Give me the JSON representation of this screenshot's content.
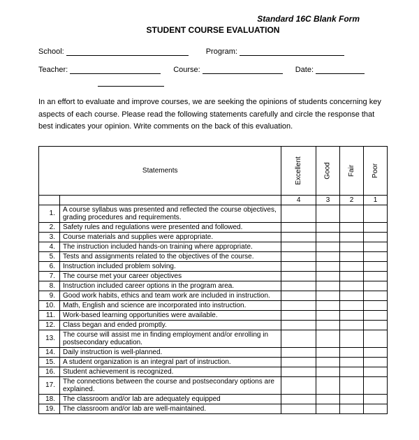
{
  "form_header": "Standard 16C Blank Form",
  "title": "STUDENT COURSE EVALUATION",
  "fields": {
    "school": "School:",
    "program": "Program:",
    "teacher": "Teacher:",
    "course": "Course:",
    "date": "Date:"
  },
  "intro": "In an effort to evaluate and improve courses, we are seeking the opinions of students concerning key aspects of each course.  Please read the following statements carefully and circle the response that best indicates your opinion.  Write comments on the back of this evaluation.",
  "table": {
    "statements_header": "Statements",
    "ratings": [
      {
        "label": "Excellent",
        "value": "4"
      },
      {
        "label": "Good",
        "value": "3"
      },
      {
        "label": "Fair",
        "value": "2"
      },
      {
        "label": "Poor",
        "value": "1"
      }
    ],
    "rows": [
      {
        "num": "1.",
        "text": "A course syllabus was presented and reflected the course objectives, grading procedures and requirements."
      },
      {
        "num": "2.",
        "text": "Safety rules and regulations were presented and followed."
      },
      {
        "num": "3.",
        "text": "Course materials and supplies were appropriate."
      },
      {
        "num": "4.",
        "text": "The instruction included hands-on training where appropriate."
      },
      {
        "num": "5.",
        "text": "Tests and assignments related to the objectives of the course."
      },
      {
        "num": "6.",
        "text": "Instruction included problem solving."
      },
      {
        "num": "7.",
        "text": "The course met your career objectives"
      },
      {
        "num": "8.",
        "text": "Instruction included career options in the program area."
      },
      {
        "num": "9.",
        "text": "Good work habits, ethics and team work are included in instruction."
      },
      {
        "num": "10.",
        "text": "Math, English and science are incorporated into instruction."
      },
      {
        "num": "11.",
        "text": "Work-based learning opportunities were available."
      },
      {
        "num": "12.",
        "text": "Class began and ended promptly."
      },
      {
        "num": "13.",
        "text": "The course will assist me in finding employment and/or enrolling in postsecondary education."
      },
      {
        "num": "14.",
        "text": "Daily instruction is well-planned."
      },
      {
        "num": "15.",
        "text": "A student organization is an integral part of instruction."
      },
      {
        "num": "16.",
        "text": "Student achievement is recognized."
      },
      {
        "num": "17.",
        "text": "The connections between the course and postsecondary options are explained."
      },
      {
        "num": "18.",
        "text": "The classroom and/or lab are adequately equipped"
      },
      {
        "num": "19.",
        "text": "The classroom and/or lab are well-maintained."
      }
    ]
  }
}
